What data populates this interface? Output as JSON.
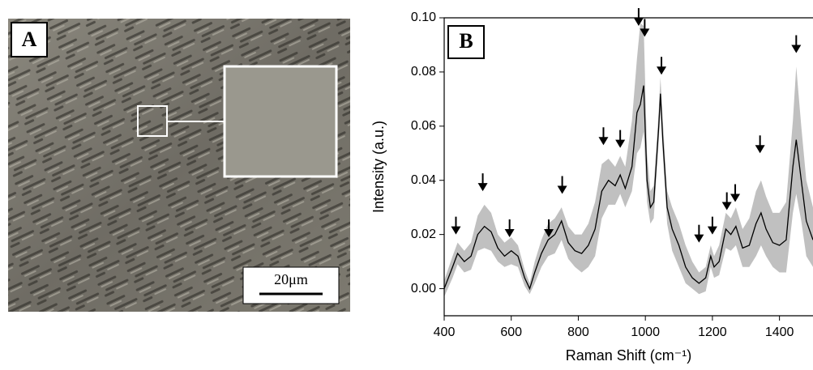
{
  "panel_a": {
    "label": "A",
    "scale_bar": "20μm"
  },
  "chart_data": {
    "type": "line",
    "panel_label": "B",
    "x_label": "Raman Shift (cm⁻¹)",
    "y_label": "Intensity (a.u.)",
    "xlim": [
      400,
      1500
    ],
    "ylim": [
      -0.01,
      0.1
    ],
    "xticks": [
      400,
      600,
      800,
      1000,
      1200,
      1400
    ],
    "yticks": [
      {
        "value": 0,
        "label": "0.00"
      },
      0.02,
      0.04,
      0.06,
      0.08,
      {
        "value": 0.1,
        "label": "0.10"
      }
    ],
    "x": [
      400,
      425,
      440,
      460,
      480,
      500,
      520,
      540,
      560,
      580,
      600,
      620,
      640,
      655,
      670,
      690,
      710,
      730,
      750,
      770,
      790,
      810,
      830,
      850,
      870,
      890,
      910,
      925,
      940,
      960,
      975,
      985,
      995,
      1005,
      1015,
      1025,
      1040,
      1045,
      1052,
      1065,
      1080,
      1100,
      1120,
      1140,
      1160,
      1180,
      1195,
      1205,
      1220,
      1240,
      1255,
      1270,
      1290,
      1310,
      1330,
      1345,
      1360,
      1380,
      1400,
      1420,
      1440,
      1450,
      1465,
      1480,
      1500
    ],
    "series": [
      {
        "color": "#000000",
        "values": [
          0.0,
          0.008,
          0.013,
          0.01,
          0.012,
          0.02,
          0.023,
          0.021,
          0.015,
          0.012,
          0.014,
          0.012,
          0.004,
          0.0,
          0.006,
          0.013,
          0.018,
          0.02,
          0.025,
          0.017,
          0.014,
          0.013,
          0.016,
          0.022,
          0.036,
          0.04,
          0.038,
          0.042,
          0.037,
          0.045,
          0.065,
          0.068,
          0.075,
          0.04,
          0.03,
          0.032,
          0.06,
          0.072,
          0.055,
          0.03,
          0.022,
          0.016,
          0.008,
          0.004,
          0.002,
          0.004,
          0.012,
          0.008,
          0.01,
          0.022,
          0.02,
          0.023,
          0.015,
          0.016,
          0.024,
          0.028,
          0.022,
          0.017,
          0.016,
          0.018,
          0.045,
          0.055,
          0.04,
          0.025,
          0.018
        ]
      }
    ],
    "band": {
      "color": "#c0c0c0",
      "lower": [
        -0.003,
        0.004,
        0.009,
        0.006,
        0.007,
        0.014,
        0.015,
        0.014,
        0.01,
        0.008,
        0.009,
        0.008,
        0.001,
        -0.002,
        0.002,
        0.008,
        0.012,
        0.013,
        0.018,
        0.011,
        0.008,
        0.006,
        0.008,
        0.012,
        0.026,
        0.031,
        0.031,
        0.035,
        0.03,
        0.036,
        0.05,
        0.052,
        0.058,
        0.032,
        0.024,
        0.026,
        0.055,
        0.066,
        0.05,
        0.024,
        0.014,
        0.008,
        0.002,
        0.0,
        -0.002,
        -0.001,
        0.008,
        0.004,
        0.005,
        0.015,
        0.014,
        0.016,
        0.008,
        0.008,
        0.012,
        0.016,
        0.012,
        0.008,
        0.006,
        0.006,
        0.028,
        0.035,
        0.025,
        0.012,
        0.008
      ],
      "upper": [
        0.003,
        0.012,
        0.017,
        0.014,
        0.017,
        0.027,
        0.031,
        0.028,
        0.02,
        0.017,
        0.019,
        0.016,
        0.007,
        0.002,
        0.01,
        0.018,
        0.024,
        0.026,
        0.03,
        0.023,
        0.02,
        0.02,
        0.024,
        0.032,
        0.046,
        0.048,
        0.045,
        0.049,
        0.045,
        0.062,
        0.085,
        0.098,
        0.097,
        0.05,
        0.036,
        0.038,
        0.066,
        0.078,
        0.062,
        0.036,
        0.03,
        0.024,
        0.016,
        0.01,
        0.006,
        0.008,
        0.016,
        0.012,
        0.016,
        0.028,
        0.026,
        0.03,
        0.022,
        0.026,
        0.036,
        0.04,
        0.034,
        0.028,
        0.028,
        0.032,
        0.062,
        0.082,
        0.06,
        0.04,
        0.03
      ]
    },
    "arrows": [
      {
        "x": 435,
        "y": 0.02
      },
      {
        "x": 515,
        "y": 0.036
      },
      {
        "x": 595,
        "y": 0.019
      },
      {
        "x": 712,
        "y": 0.019
      },
      {
        "x": 752,
        "y": 0.035
      },
      {
        "x": 875,
        "y": 0.053
      },
      {
        "x": 925,
        "y": 0.052
      },
      {
        "x": 980,
        "y": 0.097
      },
      {
        "x": 998,
        "y": 0.093
      },
      {
        "x": 1048,
        "y": 0.079
      },
      {
        "x": 1160,
        "y": 0.017
      },
      {
        "x": 1200,
        "y": 0.02
      },
      {
        "x": 1243,
        "y": 0.029
      },
      {
        "x": 1268,
        "y": 0.032
      },
      {
        "x": 1342,
        "y": 0.05
      },
      {
        "x": 1450,
        "y": 0.087
      }
    ]
  }
}
